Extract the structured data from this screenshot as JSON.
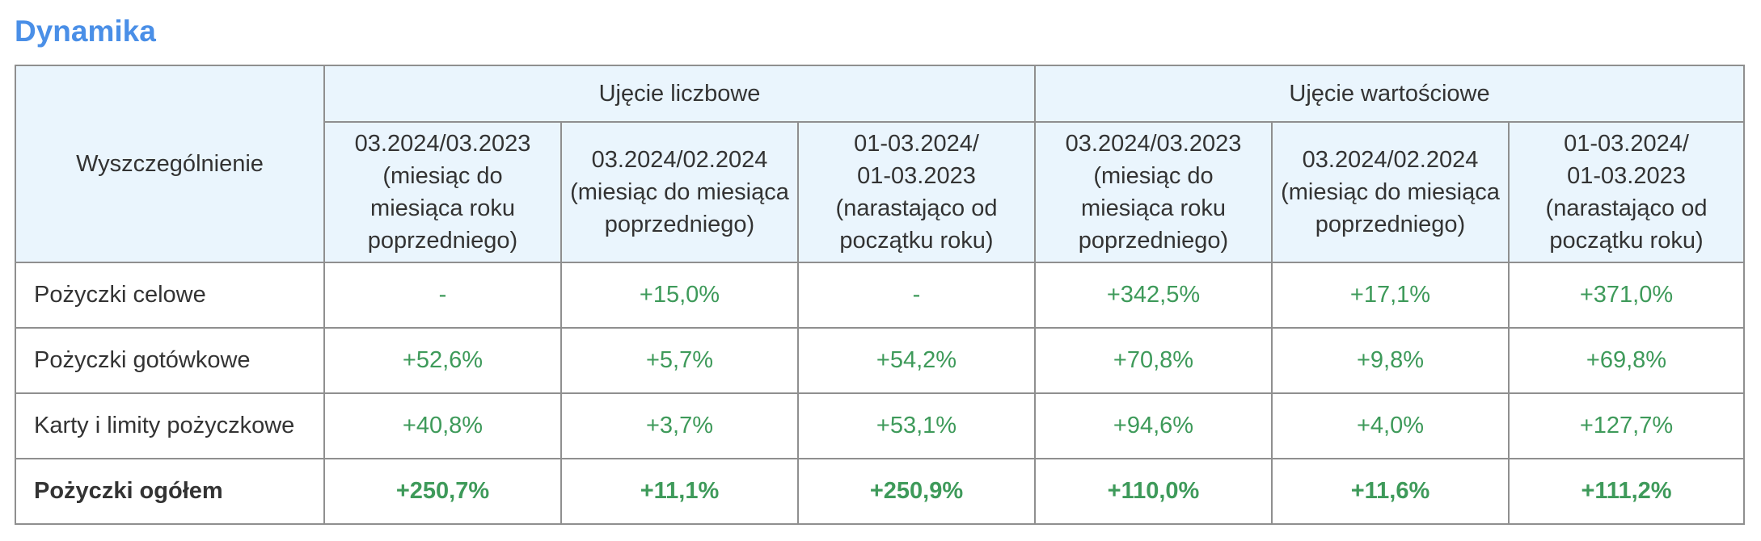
{
  "title": "Dynamika",
  "table": {
    "corner": "Wyszczególnienie",
    "groups": [
      "Ujęcie liczbowe",
      "Ujęcie wartościowe"
    ],
    "subheaders": [
      [
        "03.2024/03.2023",
        "(miesiąc do",
        "miesiąca roku",
        "poprzedniego)"
      ],
      [
        "03.2024/02.2024",
        "(miesiąc do miesiąca",
        "poprzedniego)"
      ],
      [
        "01-03.2024/",
        "01-03.2023",
        "(narastająco od",
        "początku roku)"
      ],
      [
        "03.2024/03.2023",
        "(miesiąc do",
        "miesiąca roku",
        "poprzedniego)"
      ],
      [
        "03.2024/02.2024",
        "(miesiąc do miesiąca",
        "poprzedniego)"
      ],
      [
        "01-03.2024/",
        "01-03.2023",
        "(narastająco od",
        "początku roku)"
      ]
    ],
    "rows": [
      {
        "label": "Pożyczki celowe",
        "values": [
          "-",
          "+15,0%",
          "-",
          "+342,5%",
          "+17,1%",
          "+371,0%"
        ],
        "bold": false
      },
      {
        "label": "Pożyczki gotówkowe",
        "values": [
          "+52,6%",
          "+5,7%",
          "+54,2%",
          "+70,8%",
          "+9,8%",
          "+69,8%"
        ],
        "bold": false
      },
      {
        "label": "Karty i limity pożyczkowe",
        "values": [
          "+40,8%",
          "+3,7%",
          "+53,1%",
          "+94,6%",
          "+4,0%",
          "+127,7%"
        ],
        "bold": false
      },
      {
        "label": "Pożyczki ogółem",
        "values": [
          "+250,7%",
          "+11,1%",
          "+250,9%",
          "+110,0%",
          "+11,6%",
          "+111,2%"
        ],
        "bold": true
      }
    ]
  },
  "colors": {
    "title": "#4a8fe7",
    "header_bg": "#eaf5fd",
    "value_green": "#3e9a5a",
    "border": "#8f8f8f"
  }
}
